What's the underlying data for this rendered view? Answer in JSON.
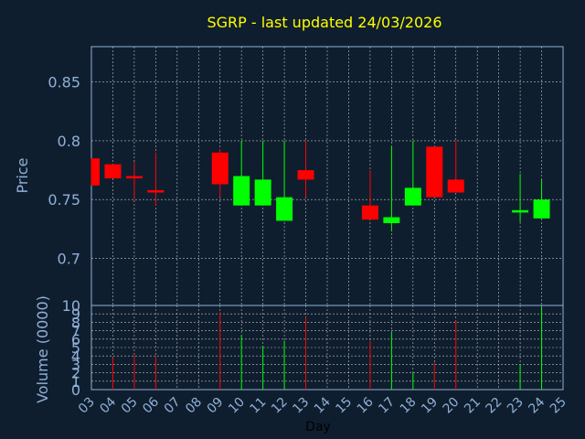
{
  "chart_data": {
    "type": "candlestick",
    "title": "SGRP - last updated 24/03/2026",
    "xlabel": "Day",
    "ylabel_price": "Price",
    "ylabel_volume": "Volume (0000)",
    "x_ticks": [
      "03",
      "04",
      "05",
      "06",
      "07",
      "08",
      "09",
      "10",
      "11",
      "12",
      "13",
      "14",
      "15",
      "16",
      "17",
      "18",
      "19",
      "20",
      "21",
      "22",
      "23",
      "24",
      "25"
    ],
    "price_ylim": [
      0.66,
      0.88
    ],
    "price_yticks": [
      "0.85",
      "0.8",
      "0.75",
      "0.7"
    ],
    "price_yticks_values": [
      0.85,
      0.8,
      0.75,
      0.7
    ],
    "volume_ylim": [
      0,
      10
    ],
    "volume_yticks": [
      "0",
      "1",
      "2",
      "3",
      "4",
      "5",
      "6",
      "7",
      "8",
      "9",
      "10"
    ],
    "grid": true,
    "colors": {
      "up": "#00ff00",
      "down": "#ff0000",
      "text_title": "#ffff00",
      "axis_text": "#8fb0d8",
      "grid": "#c0c0c0"
    },
    "candles": [
      {
        "day": "03",
        "open": 0.785,
        "close": 0.762,
        "high": 0.785,
        "low": 0.762,
        "volume": 0
      },
      {
        "day": "04",
        "open": 0.78,
        "close": 0.768,
        "high": 0.78,
        "low": 0.768,
        "volume": 3.8
      },
      {
        "day": "05",
        "open": 0.77,
        "close": 0.768,
        "high": 0.782,
        "low": 0.75,
        "volume": 4.2
      },
      {
        "day": "06",
        "open": 0.758,
        "close": 0.756,
        "high": 0.79,
        "low": 0.745,
        "volume": 4.0
      },
      {
        "day": "09",
        "open": 0.79,
        "close": 0.763,
        "high": 0.793,
        "low": 0.752,
        "volume": 9.2
      },
      {
        "day": "10",
        "open": 0.745,
        "close": 0.77,
        "high": 0.8,
        "low": 0.745,
        "volume": 6.5
      },
      {
        "day": "11",
        "open": 0.745,
        "close": 0.767,
        "high": 0.8,
        "low": 0.745,
        "volume": 5.2
      },
      {
        "day": "12",
        "open": 0.732,
        "close": 0.752,
        "high": 0.8,
        "low": 0.732,
        "volume": 5.8
      },
      {
        "day": "13",
        "open": 0.775,
        "close": 0.767,
        "high": 0.8,
        "low": 0.752,
        "volume": 8.6
      },
      {
        "day": "16",
        "open": 0.745,
        "close": 0.733,
        "high": 0.775,
        "low": 0.733,
        "volume": 5.8
      },
      {
        "day": "17",
        "open": 0.73,
        "close": 0.735,
        "high": 0.795,
        "low": 0.723,
        "volume": 6.8
      },
      {
        "day": "18",
        "open": 0.745,
        "close": 0.76,
        "high": 0.8,
        "low": 0.745,
        "volume": 2.0
      },
      {
        "day": "19",
        "open": 0.795,
        "close": 0.752,
        "high": 0.795,
        "low": 0.752,
        "volume": 3.2
      },
      {
        "day": "20",
        "open": 0.767,
        "close": 0.756,
        "high": 0.8,
        "low": 0.756,
        "volume": 8.2
      },
      {
        "day": "23",
        "open": 0.739,
        "close": 0.741,
        "high": 0.772,
        "low": 0.731,
        "volume": 3.0
      },
      {
        "day": "24",
        "open": 0.734,
        "close": 0.75,
        "high": 0.767,
        "low": 0.734,
        "volume": 9.8
      }
    ]
  }
}
